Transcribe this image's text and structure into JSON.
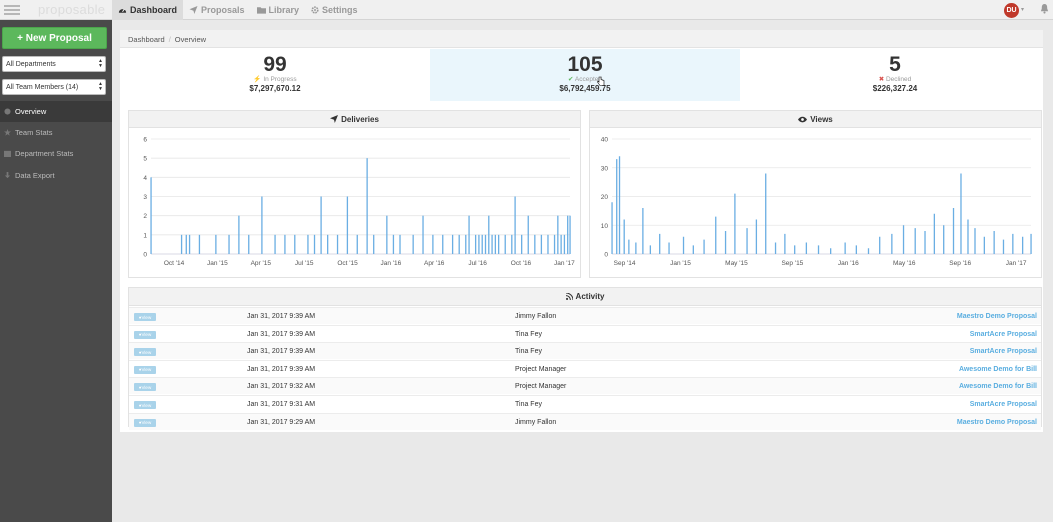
{
  "brand": "proposable",
  "nav": [
    {
      "label": "Dashboard",
      "icon": "dashboard-icon",
      "active": true
    },
    {
      "label": "Proposals",
      "icon": "paper-plane-icon",
      "active": false
    },
    {
      "label": "Library",
      "icon": "folder-icon",
      "active": false
    },
    {
      "label": "Settings",
      "icon": "gear-icon",
      "active": false
    }
  ],
  "user": {
    "initials": "DU"
  },
  "sidebar": {
    "new_button": "+ New Proposal",
    "department_select": "All Departments",
    "team_select": "All Team Members (14)",
    "items": [
      {
        "label": "Overview",
        "icon": "overview-icon",
        "active": true
      },
      {
        "label": "Team Stats",
        "icon": "star-icon",
        "active": false
      },
      {
        "label": "Department Stats",
        "icon": "department-icon",
        "active": false
      },
      {
        "label": "Data Export",
        "icon": "download-icon",
        "active": false
      }
    ]
  },
  "breadcrumb": {
    "root": "Dashboard",
    "current": "Overview"
  },
  "stats": [
    {
      "count": "99",
      "label": "In Progress",
      "amount": "$7,297,670.12",
      "icon_color": "#f0ad4e"
    },
    {
      "count": "105",
      "label": "Accepted",
      "amount": "$6,792,459.75",
      "icon_color": "#5cb85c"
    },
    {
      "count": "5",
      "label": "Declined",
      "amount": "$226,327.24",
      "icon_color": "#d9534f"
    }
  ],
  "deliveries": {
    "title": "Deliveries",
    "y_ticks": [
      "0",
      "1",
      "2",
      "3",
      "4",
      "5",
      "6"
    ],
    "x_ticks": [
      "Oct '14",
      "Jan '15",
      "Apr '15",
      "Jul '15",
      "Oct '15",
      "Jan '16",
      "Apr '16",
      "Jul '16",
      "Oct '16",
      "Jan '17"
    ]
  },
  "views": {
    "title": "Views",
    "y_ticks": [
      "0",
      "10",
      "20",
      "30",
      "40"
    ],
    "x_ticks": [
      "Sep '14",
      "Jan '15",
      "May '15",
      "Sep '15",
      "Jan '16",
      "May '16",
      "Sep '16",
      "Jan '17"
    ]
  },
  "chart_data": [
    {
      "type": "bar",
      "title": "Deliveries",
      "ylim": [
        0,
        6
      ],
      "xlim": [
        "2014-08-25",
        "2017-02-02"
      ],
      "x": [
        "2014-08-25",
        "2014-10-29",
        "2014-11-08",
        "2014-11-15",
        "2014-12-06",
        "2015-01-10",
        "2015-02-07",
        "2015-02-28",
        "2015-03-21",
        "2015-04-18",
        "2015-05-16",
        "2015-06-06",
        "2015-06-27",
        "2015-07-25",
        "2015-08-08",
        "2015-08-22",
        "2015-09-05",
        "2015-09-26",
        "2015-10-17",
        "2015-11-07",
        "2015-11-28",
        "2015-12-12",
        "2016-01-09",
        "2016-01-23",
        "2016-02-06",
        "2016-03-05",
        "2016-03-26",
        "2016-04-16",
        "2016-05-07",
        "2016-05-28",
        "2016-06-11",
        "2016-06-25",
        "2016-07-02",
        "2016-07-16",
        "2016-07-23",
        "2016-07-30",
        "2016-08-06",
        "2016-08-13",
        "2016-08-20",
        "2016-08-27",
        "2016-09-03",
        "2016-09-17",
        "2016-10-01",
        "2016-10-08",
        "2016-10-22",
        "2016-11-05",
        "2016-11-19",
        "2016-12-03",
        "2016-12-17",
        "2016-12-31",
        "2017-01-07",
        "2017-01-14",
        "2017-01-21",
        "2017-01-28",
        "2017-02-02"
      ],
      "values": [
        4,
        1,
        1,
        1,
        1,
        1,
        1,
        2,
        1,
        3,
        1,
        1,
        1,
        1,
        1,
        3,
        1,
        1,
        3,
        1,
        5,
        1,
        2,
        1,
        1,
        1,
        2,
        1,
        1,
        1,
        1,
        1,
        2,
        1,
        1,
        1,
        1,
        2,
        1,
        1,
        1,
        1,
        1,
        3,
        1,
        2,
        1,
        1,
        1,
        1,
        2,
        1,
        1,
        2,
        2
      ]
    },
    {
      "type": "bar",
      "title": "Views",
      "ylim": [
        0,
        40
      ],
      "xlim": [
        "2014-08-20",
        "2017-02-02"
      ],
      "x": [
        "2014-08-20",
        "2014-08-30",
        "2014-09-05",
        "2014-09-15",
        "2014-09-25",
        "2014-10-10",
        "2014-10-25",
        "2014-11-10",
        "2014-11-30",
        "2014-12-20",
        "2015-01-20",
        "2015-02-10",
        "2015-03-05",
        "2015-03-30",
        "2015-04-20",
        "2015-05-10",
        "2015-06-05",
        "2015-06-25",
        "2015-07-15",
        "2015-08-05",
        "2015-08-25",
        "2015-09-15",
        "2015-10-10",
        "2015-11-05",
        "2015-12-01",
        "2016-01-01",
        "2016-01-25",
        "2016-02-20",
        "2016-03-15",
        "2016-04-10",
        "2016-05-05",
        "2016-05-30",
        "2016-06-20",
        "2016-07-10",
        "2016-07-30",
        "2016-08-20",
        "2016-09-05",
        "2016-09-20",
        "2016-10-05",
        "2016-10-25",
        "2016-11-15",
        "2016-12-05",
        "2016-12-25",
        "2017-01-15",
        "2017-02-02"
      ],
      "values": [
        18,
        33,
        34,
        12,
        5,
        4,
        16,
        3,
        7,
        4,
        6,
        3,
        5,
        13,
        8,
        21,
        9,
        12,
        28,
        4,
        7,
        3,
        4,
        3,
        2,
        4,
        3,
        2,
        6,
        7,
        10,
        9,
        8,
        14,
        10,
        16,
        28,
        12,
        9,
        6,
        8,
        5,
        7,
        6,
        7
      ]
    }
  ],
  "activity": {
    "title": "Activity",
    "badge_label": "View",
    "rows": [
      {
        "date": "Jan 31, 2017 9:39 AM",
        "user": "Jimmy Fallon",
        "proposal": "Maestro Demo Proposal"
      },
      {
        "date": "Jan 31, 2017 9:39 AM",
        "user": "Tina Fey",
        "proposal": "SmartAcre Proposal"
      },
      {
        "date": "Jan 31, 2017 9:39 AM",
        "user": "Tina Fey",
        "proposal": "SmartAcre Proposal"
      },
      {
        "date": "Jan 31, 2017 9:39 AM",
        "user": "Project Manager",
        "proposal": "Awesome Demo for Bill"
      },
      {
        "date": "Jan 31, 2017 9:32 AM",
        "user": "Project Manager",
        "proposal": "Awesome Demo for Bill"
      },
      {
        "date": "Jan 31, 2017 9:31 AM",
        "user": "Tina Fey",
        "proposal": "SmartAcre Proposal"
      },
      {
        "date": "Jan 31, 2017 9:29 AM",
        "user": "Jimmy Fallon",
        "proposal": "Maestro Demo Proposal"
      }
    ]
  }
}
